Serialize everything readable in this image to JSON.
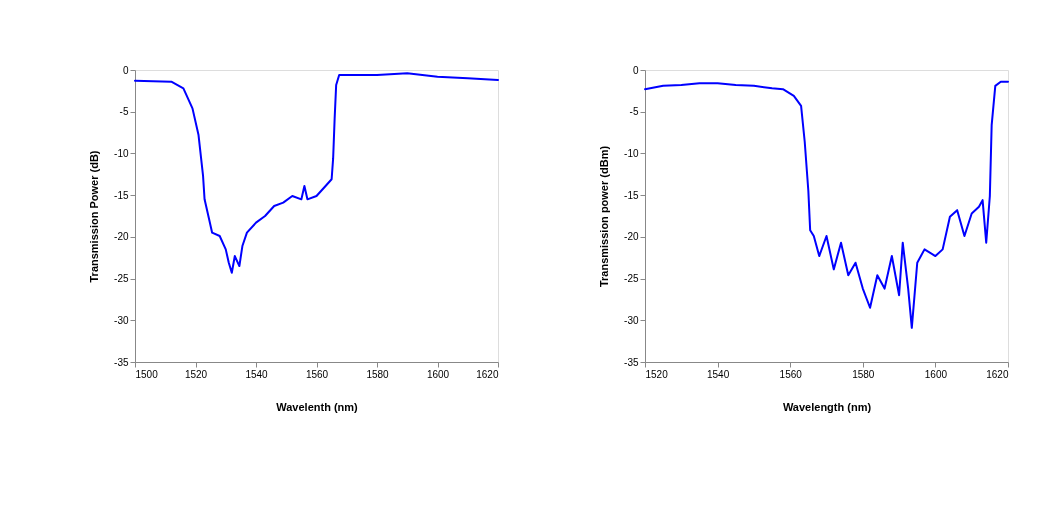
{
  "chart_data": [
    {
      "type": "line",
      "xlabel": "Wavelenth (nm)",
      "ylabel": "Transmission Power  (dB)",
      "xlim": [
        1500,
        1620
      ],
      "xticks": [
        1500,
        1520,
        1540,
        1560,
        1580,
        1600,
        1620
      ],
      "ylim": [
        -35,
        0
      ],
      "yticks": [
        -35,
        -30,
        -25,
        -20,
        -15,
        -10,
        -5,
        0
      ],
      "grid": false,
      "marker": "none",
      "line_style": "solid",
      "x": [
        1500,
        1512,
        1516,
        1519,
        1521,
        1522.5,
        1523,
        1524.5,
        1525.5,
        1528,
        1530,
        1531,
        1532,
        1533,
        1534.5,
        1535.5,
        1537,
        1540,
        1543,
        1546,
        1549,
        1552,
        1555,
        1556,
        1557,
        1560,
        1563,
        1565,
        1565.5,
        1566,
        1566.5,
        1567.5,
        1580,
        1590,
        1600,
        1610,
        1620
      ],
      "series": [
        {
          "color": "#0000ff",
          "values": [
            -1.3,
            -1.4,
            -2.2,
            -4.6,
            -7.8,
            -12.7,
            -15.5,
            -17.9,
            -19.5,
            -19.9,
            -21.5,
            -23.1,
            -24.3,
            -22.3,
            -23.5,
            -21.1,
            -19.5,
            -18.3,
            -17.5,
            -16.3,
            -15.9,
            -15.1,
            -15.5,
            -13.9,
            -15.5,
            -15.1,
            -13.9,
            -13.1,
            -10.6,
            -5.8,
            -1.8,
            -0.6,
            -0.6,
            -0.4,
            -0.8,
            -1.0,
            -1.2
          ]
        }
      ]
    },
    {
      "type": "line",
      "xlabel": "Wavelength (nm)",
      "ylabel": "Transmission power (dBm)",
      "xlim": [
        1520,
        1620
      ],
      "xticks": [
        1520,
        1540,
        1560,
        1580,
        1600,
        1620
      ],
      "ylim": [
        -35,
        0
      ],
      "yticks": [
        -35,
        -30,
        -25,
        -20,
        -15,
        -10,
        -5,
        0
      ],
      "grid": false,
      "marker": "none",
      "line_style": "solid",
      "x": [
        1520,
        1525,
        1530,
        1535,
        1540,
        1545,
        1550,
        1555,
        1558,
        1561,
        1563,
        1564,
        1565,
        1565.5,
        1566.5,
        1568,
        1570,
        1572,
        1574,
        1576,
        1578,
        1580,
        1582,
        1584,
        1586,
        1588,
        1590,
        1591,
        1592.5,
        1593.5,
        1595,
        1597,
        1600,
        1602,
        1604,
        1606,
        1608,
        1610,
        1612,
        1613,
        1614,
        1615,
        1615.5,
        1616.5,
        1618,
        1620
      ],
      "series": [
        {
          "color": "#0000ff",
          "values": [
            -2.3,
            -1.9,
            -1.8,
            -1.6,
            -1.6,
            -1.8,
            -1.9,
            -2.2,
            -2.3,
            -3.1,
            -4.3,
            -8.6,
            -14.5,
            -19.2,
            -19.9,
            -22.3,
            -19.9,
            -23.9,
            -20.7,
            -24.6,
            -23.1,
            -26.2,
            -28.5,
            -24.6,
            -26.2,
            -22.3,
            -27.0,
            -20.7,
            -26.2,
            -30.9,
            -23.1,
            -21.5,
            -22.3,
            -21.5,
            -17.6,
            -16.8,
            -19.9,
            -17.2,
            -16.4,
            -15.6,
            -20.7,
            -15.1,
            -6.6,
            -1.9,
            -1.4,
            -1.4
          ]
        }
      ]
    }
  ]
}
